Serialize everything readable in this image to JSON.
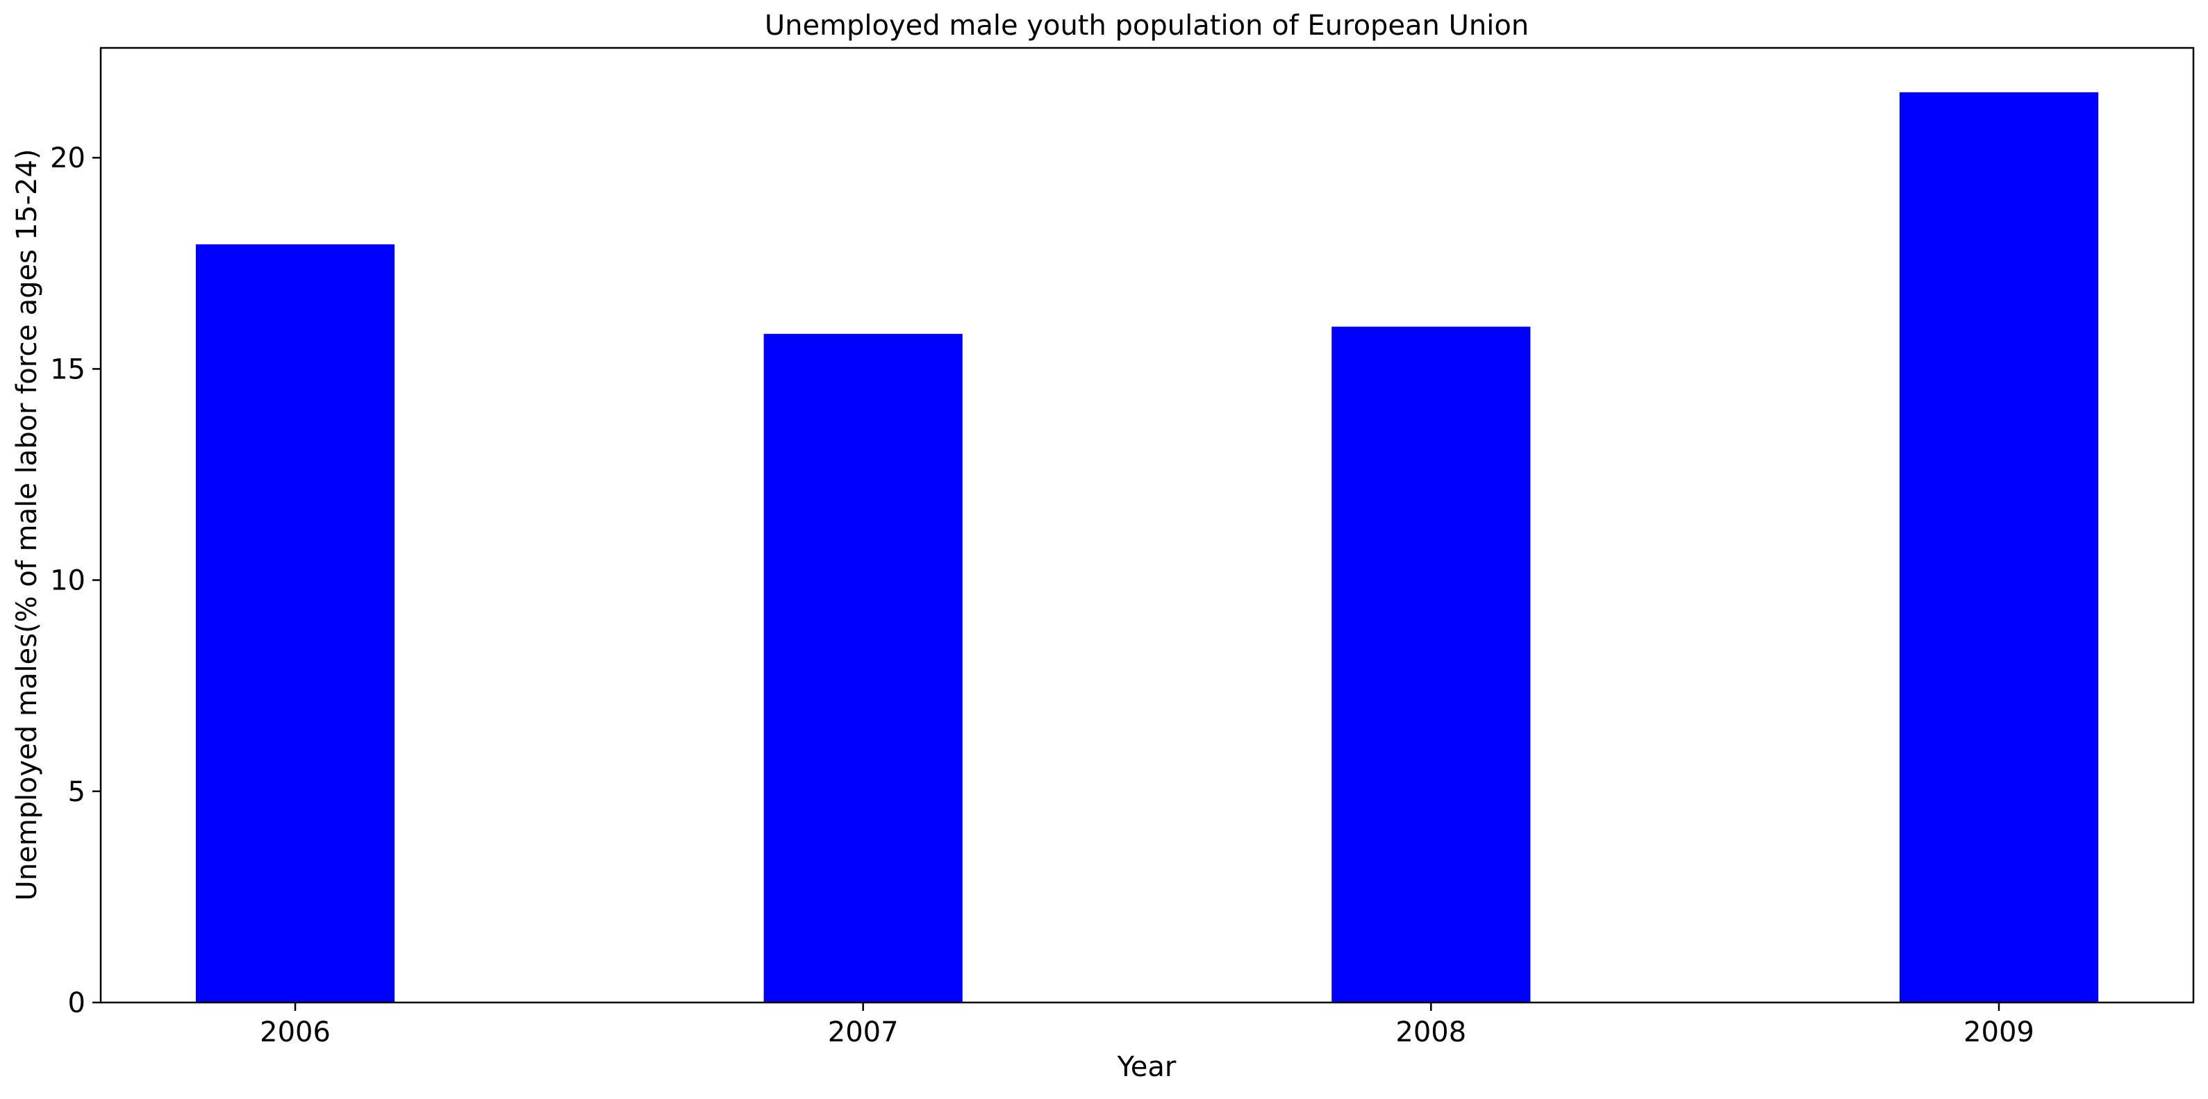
{
  "chart_data": {
    "type": "bar",
    "title": "Unemployed male youth population of European Union",
    "xlabel": "Year",
    "ylabel": "Unemployed males(% of male labor force ages 15-24)",
    "categories": [
      "2006",
      "2007",
      "2008",
      "2009"
    ],
    "values": [
      17.95,
      15.83,
      16.0,
      21.55
    ],
    "ylim": [
      0,
      22.6
    ],
    "yticks": [
      0,
      5,
      10,
      15,
      20
    ],
    "bar_color": "#0000ff",
    "grid": false,
    "legend": "none"
  }
}
